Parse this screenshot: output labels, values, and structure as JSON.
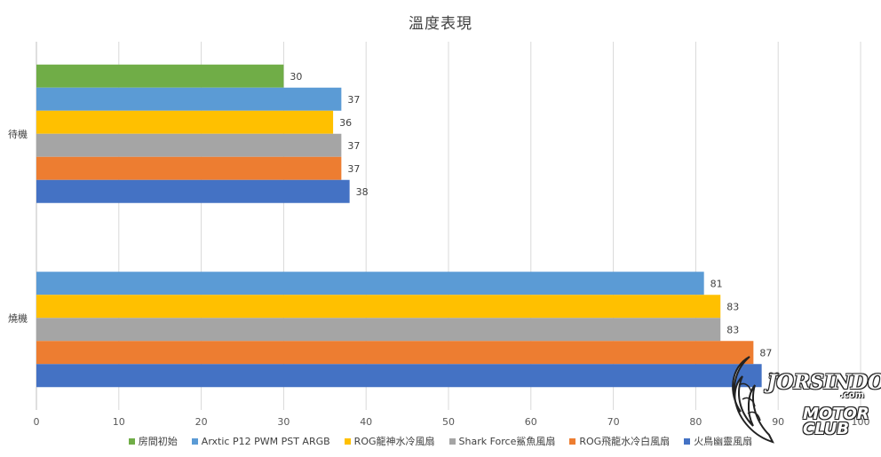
{
  "chart_data": {
    "type": "bar",
    "orientation": "horizontal",
    "title": "溫度表現",
    "categories": [
      "待機",
      "燒機"
    ],
    "series": [
      {
        "name": "房間初始",
        "color": "#70AD47",
        "values": [
          30,
          null
        ]
      },
      {
        "name": "Arxtic P12 PWM PST ARGB",
        "color": "#5B9BD5",
        "values": [
          37,
          81
        ]
      },
      {
        "name": "ROG龍神水冷風扇",
        "color": "#FFC000",
        "values": [
          36,
          83
        ]
      },
      {
        "name": "Shark Force鯊魚風扇",
        "color": "#A5A5A5",
        "values": [
          37,
          83
        ]
      },
      {
        "name": "ROG飛龍水冷白風扇",
        "color": "#ED7D31",
        "values": [
          37,
          87
        ]
      },
      {
        "name": "火鳥幽靈風扇",
        "color": "#4472C4",
        "values": [
          38,
          88
        ]
      }
    ],
    "xlim": [
      0,
      100
    ],
    "xticks": [
      0,
      10,
      20,
      30,
      40,
      50,
      60,
      70,
      80,
      90,
      100
    ],
    "grid": true,
    "legend_position": "bottom"
  },
  "watermark": {
    "line1": "JORSINDO",
    "com": ".com",
    "line2": "MOTOR CLUB"
  }
}
